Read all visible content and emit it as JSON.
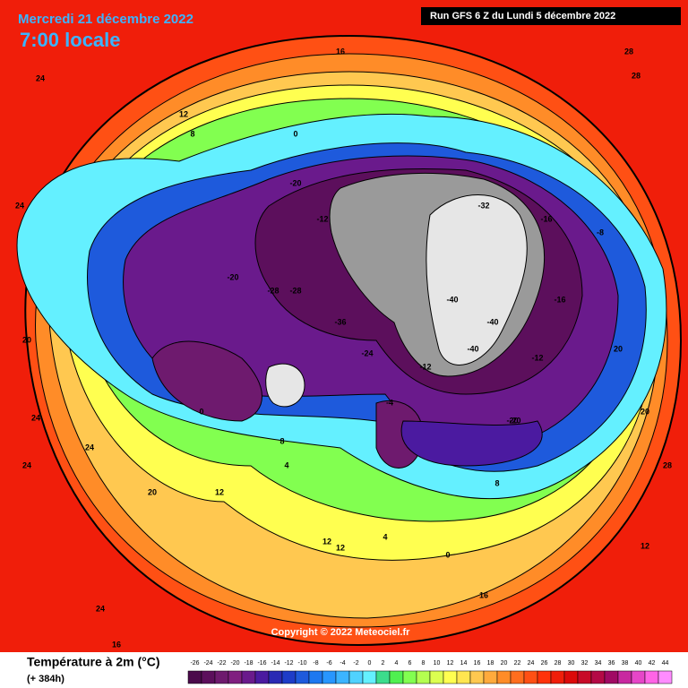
{
  "header": {
    "date": "Mercredi 21 décembre 2022",
    "time": "7:00 locale",
    "run": "Run GFS 6 Z du Lundi 5 décembre 2022"
  },
  "copyright": "Copyright © 2022 Meteociel.fr",
  "legend": {
    "title": "Température à 2m (°C)",
    "lead": "(+ 384h)",
    "ticks": [
      -26,
      -24,
      -22,
      -20,
      -18,
      -16,
      -14,
      -12,
      -10,
      -8,
      -6,
      -4,
      -2,
      0,
      2,
      4,
      6,
      8,
      10,
      12,
      14,
      16,
      18,
      20,
      22,
      24,
      26,
      28,
      30,
      32,
      34,
      36,
      38,
      40,
      42,
      44
    ],
    "colors": [
      "#4b0a4b",
      "#5c0f5c",
      "#6e1a6e",
      "#801f80",
      "#6a1a8c",
      "#4b1aa0",
      "#2a2ab4",
      "#1e3cc8",
      "#1e5adc",
      "#1e78f0",
      "#2896ff",
      "#3cb4ff",
      "#50d2ff",
      "#64f0ff",
      "#3cdc8c",
      "#50f050",
      "#82ff50",
      "#b4ff50",
      "#dcff50",
      "#ffff50",
      "#ffe650",
      "#ffc850",
      "#ffaa3c",
      "#ff8c28",
      "#ff6e1e",
      "#ff5014",
      "#ff320a",
      "#f01e0a",
      "#dc0a0a",
      "#c80a28",
      "#b40a46",
      "#a00a64",
      "#c828a0",
      "#e646c8",
      "#ff64e6",
      "#ff8cff"
    ]
  },
  "map_labels": [
    "24",
    "16",
    "28",
    "24",
    "12",
    "8",
    "0",
    "-20",
    "-12",
    "-28",
    "-36",
    "-40",
    "-40",
    "-40",
    "-20",
    "-12",
    "-4",
    "4",
    "12",
    "20",
    "24",
    "28",
    "-32",
    "-16",
    "-8",
    "0",
    "8",
    "12",
    "16",
    "24",
    "20",
    "12",
    "4",
    "-12",
    "-24",
    "-28",
    "-20",
    "12",
    "24",
    "20",
    "16",
    "28",
    "24",
    "20",
    "-20",
    "-16",
    "0",
    "8"
  ]
}
